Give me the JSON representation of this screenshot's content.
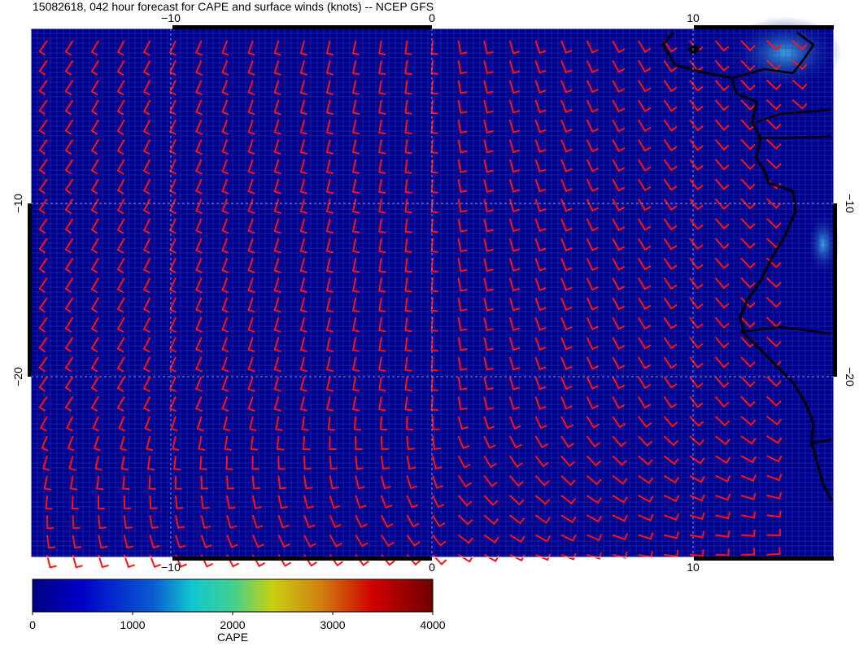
{
  "title": "15082618, 042 hour forecast for CAPE and surface winds (knots) -- NCEP GFS",
  "map": {
    "x_ticks": [
      {
        "value": -10,
        "label": "−10"
      },
      {
        "value": 0,
        "label": "0"
      },
      {
        "value": 10,
        "label": "10"
      }
    ],
    "y_ticks": [
      {
        "value": -10,
        "label": "−10"
      },
      {
        "value": -20,
        "label": "−20"
      }
    ]
  },
  "colorbar": {
    "label": "CAPE",
    "range": [
      0,
      4000
    ],
    "ticks": [
      0,
      1000,
      2000,
      3000,
      4000
    ]
  }
}
